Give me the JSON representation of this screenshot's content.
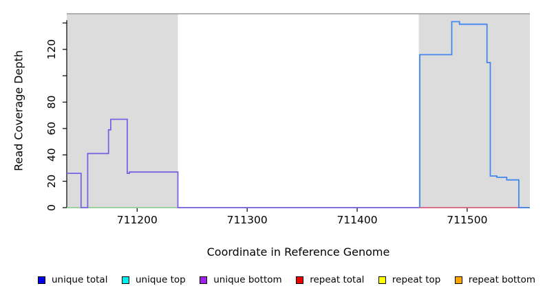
{
  "chart_data": {
    "type": "line",
    "title": "",
    "xlabel": "Coordinate in Reference Genome",
    "ylabel": "Read Coverage Depth",
    "xlim": [
      711136,
      711557
    ],
    "ylim": [
      0,
      147
    ],
    "x_ticks": [
      711200,
      711300,
      711400,
      711500
    ],
    "y_ticks": [
      0,
      20,
      40,
      60,
      80,
      100,
      120,
      140
    ],
    "y_tick_labels_shown": [
      0,
      20,
      40,
      60,
      80,
      120
    ],
    "grid": false,
    "legend_position": "bottom",
    "plot_background": "#ffffff",
    "top_border_color": "#999999",
    "background_regions": [
      {
        "name": "shaded-region-left",
        "x0": 711136,
        "x1": 711237,
        "color": "#DCDCDC"
      },
      {
        "name": "shaded-region-right",
        "x0": 711456,
        "x1": 711557,
        "color": "#DCDCDC"
      }
    ],
    "series": [
      {
        "id": "zero-baseline-left",
        "name": "zero coverage baseline (left region)",
        "color": "#9CD49C",
        "points": [
          [
            711136,
            0
          ],
          [
            711237,
            0
          ]
        ]
      },
      {
        "id": "unique-bottom",
        "name": "unique bottom coverage (left region)",
        "color": "#7663E3",
        "points": [
          [
            711136,
            26
          ],
          [
            711149,
            26
          ],
          [
            711149,
            0
          ],
          [
            711155,
            0
          ],
          [
            711155,
            41
          ],
          [
            711174,
            41
          ],
          [
            711174,
            59
          ],
          [
            711176,
            59
          ],
          [
            711176,
            67
          ],
          [
            711191,
            67
          ],
          [
            711191,
            26
          ],
          [
            711193,
            26
          ],
          [
            711193,
            27
          ],
          [
            711237,
            27
          ],
          [
            711237,
            0
          ],
          [
            711456,
            0
          ]
        ]
      },
      {
        "id": "repeat-total",
        "name": "repeat total baseline (right region)",
        "color": "#E06485",
        "points": [
          [
            711456,
            0
          ],
          [
            711557,
            0
          ]
        ]
      },
      {
        "id": "unique-total",
        "name": "unique total coverage (right region)",
        "color": "#4187EE",
        "points": [
          [
            711457,
            0
          ],
          [
            711457,
            116
          ],
          [
            711486,
            116
          ],
          [
            711486,
            141
          ],
          [
            711493,
            141
          ],
          [
            711493,
            139
          ],
          [
            711518,
            139
          ],
          [
            711518,
            110
          ],
          [
            711521,
            110
          ],
          [
            711521,
            24
          ],
          [
            711527,
            24
          ],
          [
            711527,
            23
          ],
          [
            711536,
            23
          ],
          [
            711536,
            21
          ],
          [
            711547,
            21
          ],
          [
            711547,
            0
          ],
          [
            711557,
            0
          ]
        ]
      }
    ]
  },
  "legend": {
    "items": [
      {
        "label": "unique total",
        "color": "#0000EE"
      },
      {
        "label": "unique top",
        "color": "#00EEEE"
      },
      {
        "label": "unique bottom",
        "color": "#A020F0"
      },
      {
        "label": "repeat total",
        "color": "#EE0000"
      },
      {
        "label": "repeat top",
        "color": "#FFFF00"
      },
      {
        "label": "repeat bottom",
        "color": "#FFA500"
      }
    ]
  }
}
